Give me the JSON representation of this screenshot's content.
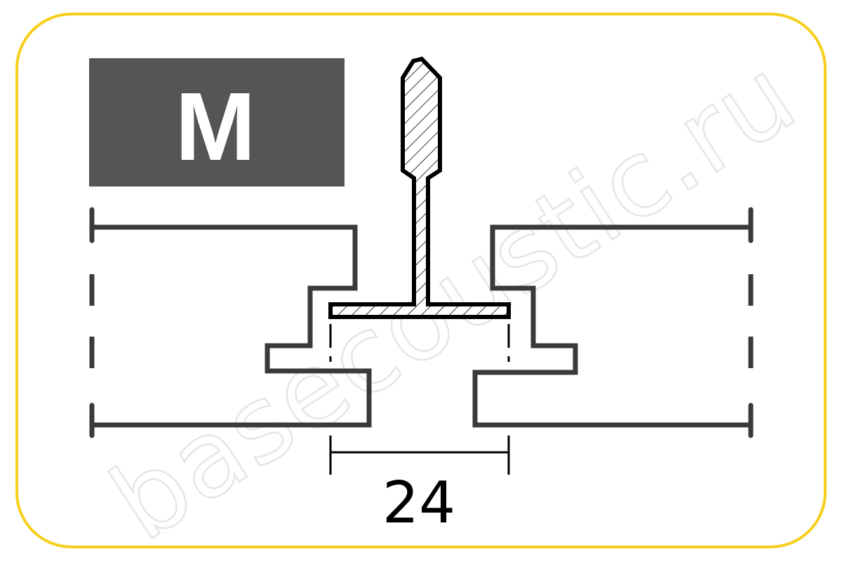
{
  "panel": {
    "label": "M",
    "dimension_label": "24",
    "watermark": "basecoustic.ru"
  },
  "colors": {
    "frame_border": "#f7cf1b",
    "label_background": "#555555",
    "label_text": "#ffffff",
    "tile_outline": "#3a3a3a",
    "profile_outline": "#000000",
    "dimension": "#000000"
  },
  "icons": {
    "profile": "t-bar-profile-section",
    "tiles": "ceiling-tile-edge-section"
  }
}
